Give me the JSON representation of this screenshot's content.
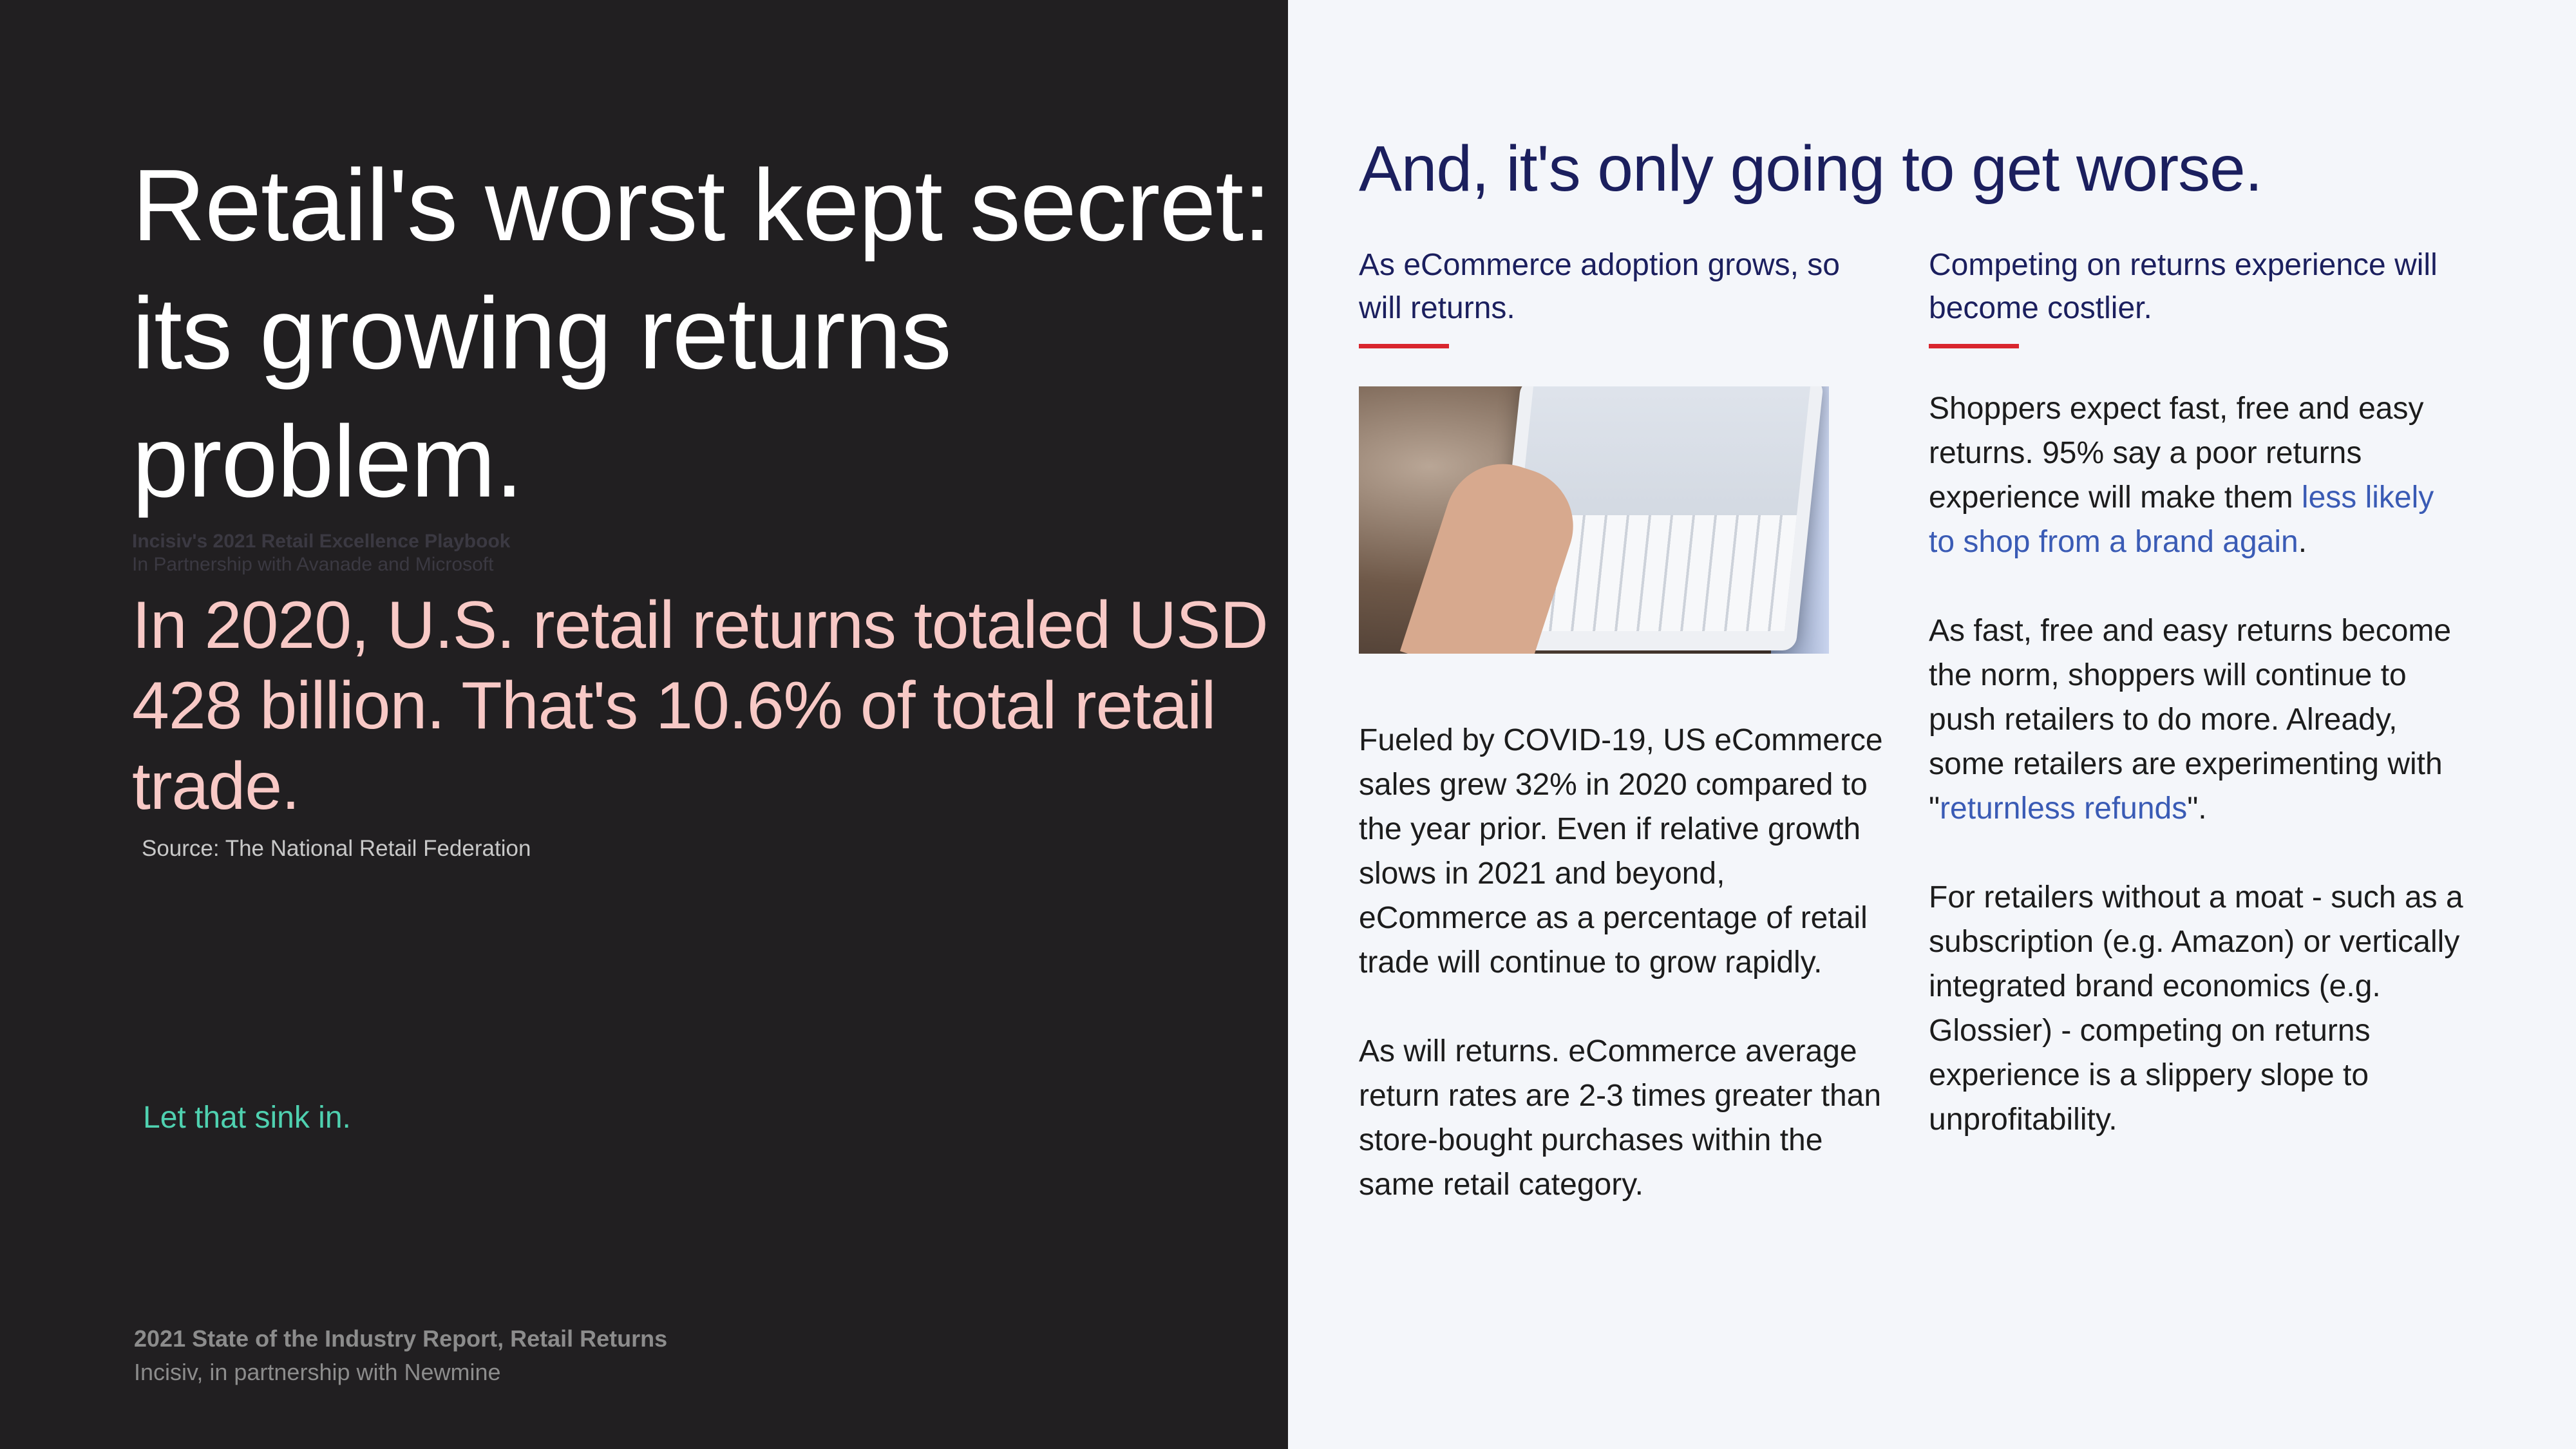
{
  "left": {
    "title": "Retail's worst kept secret: its growing returns problem.",
    "ghost_title": "Incisiv's 2021 Retail Excellence Playbook",
    "ghost_subtitle": "In Partnership with Avanade and Microsoft",
    "stat": "In 2020, U.S. retail returns totaled USD 428 billion. That's 10.6% of total retail trade.",
    "source": "Source: The National Retail Federation",
    "callout": "Let that sink in.",
    "footer_title": "2021 State of the Industry Report, Retail Returns",
    "footer_subtitle": "Incisiv, in partnership with Newmine"
  },
  "right": {
    "heading": "And, it's only going to get worse.",
    "col1": {
      "subhead": "As eCommerce adoption grows, so will returns.",
      "p1": "Fueled by COVID-19, US eCommerce sales grew 32% in 2020 compared to the year prior. Even if relative growth slows in 2021 and beyond, eCommerce as a percentage of retail trade will continue to grow rapidly.",
      "p2": "As will returns. eCommerce average return rates are 2-3 times greater than store-bought purchases within the same retail category."
    },
    "col2": {
      "subhead": "Competing on returns experience will become costlier.",
      "p1_a": "Shoppers expect fast, free and easy returns. 95% say a poor returns experience will make them ",
      "p1_link": "less likely to shop from a brand again",
      "p1_b": ".",
      "p2_a": "As fast, free and easy returns become the norm, shoppers will continue to push retailers to do more. Already, some retailers are experimenting with \"",
      "p2_link": "returnless refunds",
      "p2_b": "\".",
      "p3": "For retailers without a moat - such as a subscription (e.g. Amazon) or vertically integrated brand economics (e.g. Glossier) - competing on returns experience is a slippery slope to unprofitability."
    }
  },
  "colors": {
    "dark_bg": "#211f21",
    "light_bg": "#f4f6fa",
    "accent_pink": "#f8c9c6",
    "accent_teal": "#4fd1b0",
    "navy": "#1b1f5e",
    "red_rule": "#d9262e",
    "link": "#3a5bb5"
  }
}
